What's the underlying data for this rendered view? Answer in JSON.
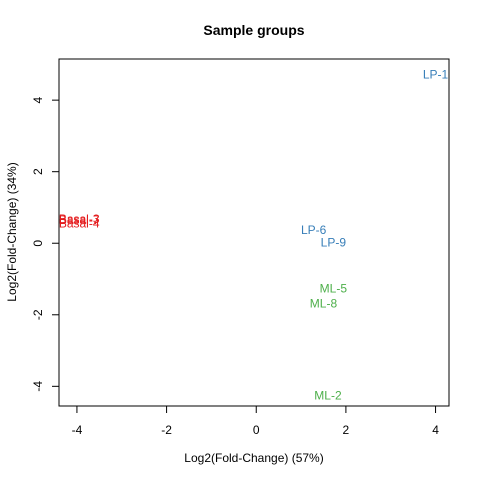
{
  "chart_data": {
    "type": "scatter",
    "title": "Sample groups",
    "xlabel": "Log2(Fold-Change) (57%)",
    "ylabel": "Log2(Fold-Change) (34%)",
    "xlim": [
      -4.4,
      4.3
    ],
    "ylim": [
      -4.55,
      5.15
    ],
    "xticks": [
      -4,
      -2,
      0,
      2,
      4
    ],
    "yticks": [
      -4,
      -2,
      0,
      2,
      4
    ],
    "grid": false,
    "legend": "none",
    "colors": {
      "Basal": "#e41a1c",
      "LP": "#377eb8",
      "ML": "#4daf4a"
    },
    "points": [
      {
        "label": "LP-1",
        "group": "LP",
        "x": 4.0,
        "y": 4.72
      },
      {
        "label": "Basal-3",
        "group": "Basal",
        "x": -3.95,
        "y": 0.68
      },
      {
        "label": "Basal-7",
        "group": "Basal",
        "x": -3.95,
        "y": 0.65
      },
      {
        "label": "Basal-4",
        "group": "Basal",
        "x": -3.95,
        "y": 0.55
      },
      {
        "label": "LP-6",
        "group": "LP",
        "x": 1.28,
        "y": 0.37
      },
      {
        "label": "LP-9",
        "group": "LP",
        "x": 1.72,
        "y": 0.02
      },
      {
        "label": "ML-5",
        "group": "ML",
        "x": 1.72,
        "y": -1.27
      },
      {
        "label": "ML-8",
        "group": "ML",
        "x": 1.5,
        "y": -1.68
      },
      {
        "label": "ML-2",
        "group": "ML",
        "x": 1.6,
        "y": -4.25
      }
    ]
  }
}
